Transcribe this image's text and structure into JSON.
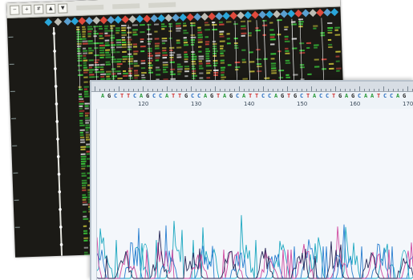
{
  "gel_view": {
    "toolbar_icons": [
      "zoom-out-icon",
      "zoom-in-icon",
      "grid-icon",
      "scroll-up-icon",
      "scroll-down-icon"
    ],
    "axis_ticks": [
      "",
      "",
      "",
      "",
      "",
      "",
      "",
      ""
    ],
    "lane_marker_colors": [
      "#2aa6d9",
      "#e04a3c",
      "#5a9fd0"
    ]
  },
  "chromatogram": {
    "base_sequence": "AGCTTCAGCCATTGCCAGTAGCATTCCAGTGCTACCTGAGCAATCCAG",
    "position_labels": [
      "120",
      "130",
      "140",
      "150",
      "160",
      "170"
    ],
    "colors": {
      "A": "#2a9a3a",
      "C": "#2a6fc0",
      "G": "#222222",
      "T": "#d03030",
      "trace_blue": "#2a7fd0",
      "trace_cyan": "#1aa7c0",
      "trace_pink": "#d04aa0",
      "trace_dark": "#2a2a5a"
    }
  }
}
